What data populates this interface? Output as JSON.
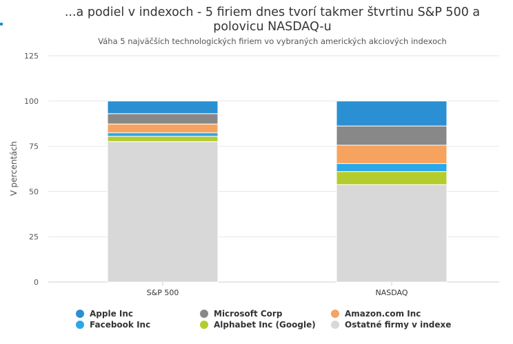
{
  "chart_data": {
    "type": "bar",
    "stacked": true,
    "title": "...a podiel v indexoch - 5 firiem dnes tvorí takmer štvrtinu S&P 500 a polovicu NASDAQ-u",
    "subtitle": "Váha 5 najväčších technologických firiem vo vybraných amerických akciových indexoch",
    "ylabel": "V percentách",
    "xlabel": "",
    "ylim": [
      0,
      125
    ],
    "yticks": [
      0,
      25,
      50,
      75,
      100,
      125
    ],
    "grid": true,
    "legend_position": "bottom",
    "categories": [
      "S&P 500",
      "NASDAQ"
    ],
    "series": [
      {
        "name": "Ostatné firmy v indexe",
        "color": "#d8d8d8",
        "values": [
          77.6,
          53.8
        ]
      },
      {
        "name": "Alphabet Inc (Google)",
        "color": "#b5cc2e",
        "values": [
          2.9,
          7.2
        ]
      },
      {
        "name": "Facebook Inc",
        "color": "#2ba8e8",
        "values": [
          2.0,
          4.5
        ]
      },
      {
        "name": "Amazon.com Inc",
        "color": "#f5a35e",
        "values": [
          4.8,
          10.1
        ]
      },
      {
        "name": "Microsoft Corp",
        "color": "#888888",
        "values": [
          5.7,
          10.6
        ]
      },
      {
        "name": "Apple Inc",
        "color": "#2a8fd3",
        "values": [
          7.0,
          13.8
        ]
      }
    ]
  },
  "legend_order": [
    "Apple Inc",
    "Microsoft Corp",
    "Amazon.com Inc",
    "Facebook Inc",
    "Alphabet Inc (Google)",
    "Ostatné firmy v indexe"
  ]
}
